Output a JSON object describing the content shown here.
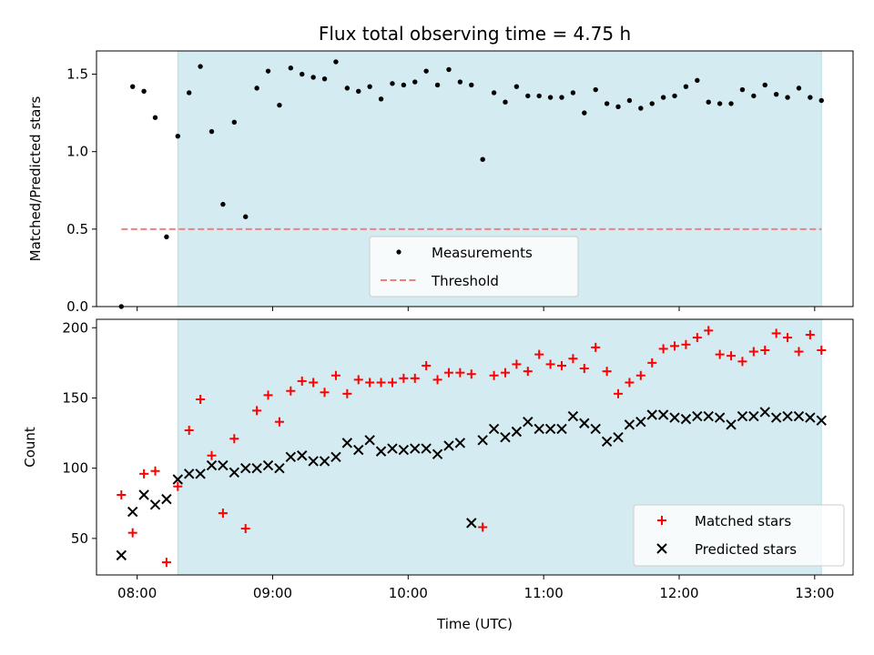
{
  "chart_data": [
    {
      "type": "scatter",
      "title": "Flux total observing time = 4.75 h",
      "xlabel": "",
      "ylabel": "Matched/Predicted stars",
      "xlim": [
        "07:42",
        "13:17"
      ],
      "ylim": [
        0,
        1.65
      ],
      "yticks": [
        0.0,
        0.5,
        1.0,
        1.5
      ],
      "ytick_labels": [
        "0.0",
        "0.5",
        "1.0",
        "1.5"
      ],
      "grid": false,
      "legend_position": "lower-center",
      "shaded_span": [
        "08:18",
        "13:03"
      ],
      "shade_color": "#d4ebf1",
      "series": [
        {
          "name": "Measurements",
          "color": "#000000",
          "marker": "dot",
          "x": [
            "07:53",
            "07:58",
            "08:03",
            "08:08",
            "08:13",
            "08:18",
            "08:23",
            "08:28",
            "08:33",
            "08:38",
            "08:43",
            "08:48",
            "08:53",
            "08:58",
            "09:03",
            "09:08",
            "09:13",
            "09:18",
            "09:23",
            "09:28",
            "09:33",
            "09:38",
            "09:43",
            "09:48",
            "09:53",
            "09:58",
            "10:03",
            "10:08",
            "10:13",
            "10:18",
            "10:23",
            "10:28",
            "10:33",
            "10:38",
            "10:43",
            "10:48",
            "10:53",
            "10:58",
            "11:03",
            "11:08",
            "11:13",
            "11:18",
            "11:23",
            "11:28",
            "11:33",
            "11:38",
            "11:43",
            "11:48",
            "11:53",
            "11:58",
            "12:03",
            "12:08",
            "12:13",
            "12:18",
            "12:23",
            "12:28",
            "12:33",
            "12:38",
            "12:43",
            "12:48",
            "12:53",
            "12:58",
            "13:03"
          ],
          "values": [
            0.0,
            1.42,
            1.39,
            1.22,
            0.45,
            1.1,
            1.38,
            1.55,
            1.13,
            0.66,
            1.19,
            0.58,
            1.41,
            1.52,
            1.3,
            1.54,
            1.5,
            1.48,
            1.47,
            1.58,
            1.41,
            1.39,
            1.42,
            1.34,
            1.44,
            1.43,
            1.45,
            1.52,
            1.43,
            1.53,
            1.45,
            1.43,
            0.95,
            1.38,
            1.32,
            1.42,
            1.36,
            1.36,
            1.35,
            1.35,
            1.38,
            1.25,
            1.4,
            1.31,
            1.29,
            1.33,
            1.28,
            1.31,
            1.35,
            1.36,
            1.42,
            1.46,
            1.32,
            1.31,
            1.31,
            1.4,
            1.36,
            1.43,
            1.37,
            1.35,
            1.41,
            1.35,
            1.33
          ]
        },
        {
          "name": "Threshold",
          "color": "#f08080",
          "style": "dashed",
          "x": [
            "07:53",
            "13:03"
          ],
          "values": [
            0.5,
            0.5
          ]
        }
      ]
    },
    {
      "type": "scatter",
      "title": "",
      "xlabel": "Time (UTC)",
      "ylabel": "Count",
      "xlim": [
        "07:42",
        "13:17"
      ],
      "ylim": [
        24,
        206
      ],
      "yticks": [
        50,
        100,
        150,
        200
      ],
      "ytick_labels": [
        "50",
        "100",
        "150",
        "200"
      ],
      "xticks": [
        "08:00",
        "09:00",
        "10:00",
        "11:00",
        "12:00",
        "13:00"
      ],
      "grid": false,
      "legend_position": "lower-right",
      "shaded_span": [
        "08:18",
        "13:03"
      ],
      "shade_color": "#d4ebf1",
      "series": [
        {
          "name": "Matched stars",
          "color": "#ff0000",
          "marker": "plus",
          "x": [
            "07:53",
            "07:58",
            "08:03",
            "08:08",
            "08:13",
            "08:18",
            "08:23",
            "08:28",
            "08:33",
            "08:38",
            "08:43",
            "08:48",
            "08:53",
            "08:58",
            "09:03",
            "09:08",
            "09:13",
            "09:18",
            "09:23",
            "09:28",
            "09:33",
            "09:38",
            "09:43",
            "09:48",
            "09:53",
            "09:58",
            "10:03",
            "10:08",
            "10:13",
            "10:18",
            "10:23",
            "10:28",
            "10:33",
            "10:38",
            "10:43",
            "10:48",
            "10:53",
            "10:58",
            "11:03",
            "11:08",
            "11:13",
            "11:18",
            "11:23",
            "11:28",
            "11:33",
            "11:38",
            "11:43",
            "11:48",
            "11:53",
            "11:58",
            "12:03",
            "12:08",
            "12:13",
            "12:18",
            "12:23",
            "12:28",
            "12:33",
            "12:38",
            "12:43",
            "12:48",
            "12:53",
            "12:58",
            "13:03"
          ],
          "values": [
            81,
            54,
            96,
            98,
            33,
            87,
            127,
            149,
            109,
            68,
            121,
            57,
            141,
            152,
            133,
            155,
            162,
            161,
            154,
            166,
            153,
            163,
            161,
            161,
            161,
            164,
            164,
            173,
            163,
            168,
            168,
            167,
            58,
            166,
            168,
            174,
            169,
            181,
            174,
            173,
            178,
            171,
            186,
            169,
            153,
            161,
            166,
            175,
            185,
            187,
            188,
            193,
            198,
            181,
            180,
            176,
            183,
            184,
            196,
            193,
            183,
            195,
            184
          ]
        },
        {
          "name": "Predicted stars",
          "color": "#000000",
          "marker": "x",
          "x": [
            "07:53",
            "07:58",
            "08:03",
            "08:08",
            "08:13",
            "08:18",
            "08:23",
            "08:28",
            "08:33",
            "08:38",
            "08:43",
            "08:48",
            "08:53",
            "08:58",
            "09:03",
            "09:08",
            "09:13",
            "09:18",
            "09:23",
            "09:28",
            "09:33",
            "09:38",
            "09:43",
            "09:48",
            "09:53",
            "09:58",
            "10:03",
            "10:08",
            "10:13",
            "10:18",
            "10:23",
            "10:28",
            "10:33",
            "10:38",
            "10:43",
            "10:48",
            "10:53",
            "10:58",
            "11:03",
            "11:08",
            "11:13",
            "11:18",
            "11:23",
            "11:28",
            "11:33",
            "11:38",
            "11:43",
            "11:48",
            "11:53",
            "11:58",
            "12:03",
            "12:08",
            "12:13",
            "12:18",
            "12:23",
            "12:28",
            "12:33",
            "12:38",
            "12:43",
            "12:48",
            "12:53",
            "12:58",
            "13:03"
          ],
          "values": [
            38,
            69,
            81,
            74,
            78,
            92,
            96,
            96,
            102,
            102,
            97,
            100,
            100,
            102,
            100,
            108,
            109,
            105,
            105,
            108,
            118,
            113,
            120,
            112,
            114,
            113,
            114,
            114,
            110,
            116,
            118,
            61,
            120,
            128,
            122,
            126,
            133,
            128,
            128,
            128,
            137,
            132,
            128,
            119,
            122,
            131,
            133,
            138,
            138,
            136,
            135,
            137,
            137,
            136,
            131,
            137,
            137,
            140,
            136,
            137,
            137,
            136,
            134
          ]
        }
      ]
    }
  ]
}
